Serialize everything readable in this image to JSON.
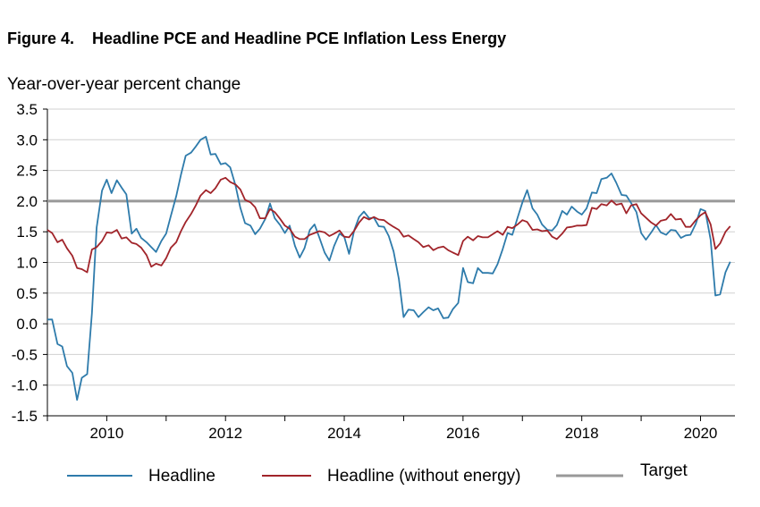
{
  "figure": {
    "title": "Figure 4.    Headline PCE and Headline PCE Inflation Less Energy"
  },
  "chart_data": {
    "type": "line",
    "title": "Headline PCE and Headline PCE Inflation Less Energy",
    "ylabel": "Year-over-year percent change",
    "xlabel": "",
    "ylim": [
      -1.5,
      3.5
    ],
    "xlim": [
      2009.0,
      2020.58
    ],
    "yticks": [
      "3.5",
      "3.0",
      "2.5",
      "2.0",
      "1.5",
      "1.0",
      "0.5",
      "0.0",
      "-0.5",
      "-1.0",
      "-1.5"
    ],
    "xticks": [
      "2010",
      "2012",
      "2014",
      "2016",
      "2018",
      "2020"
    ],
    "grid": "horizontal",
    "legend": "bottom",
    "series": [
      {
        "name": "Headline",
        "color": "#2e7bab",
        "points": [
          [
            2009.0,
            0.07
          ],
          [
            2009.08,
            0.07
          ],
          [
            2009.17,
            -0.33
          ],
          [
            2009.25,
            -0.37
          ],
          [
            2009.33,
            -0.69
          ],
          [
            2009.42,
            -0.8
          ],
          [
            2009.5,
            -1.24
          ],
          [
            2009.58,
            -0.88
          ],
          [
            2009.67,
            -0.82
          ],
          [
            2009.75,
            0.17
          ],
          [
            2009.83,
            1.57
          ],
          [
            2009.92,
            2.17
          ],
          [
            2010.0,
            2.35
          ],
          [
            2010.08,
            2.13
          ],
          [
            2010.17,
            2.34
          ],
          [
            2010.25,
            2.22
          ],
          [
            2010.33,
            2.11
          ],
          [
            2010.42,
            1.47
          ],
          [
            2010.5,
            1.55
          ],
          [
            2010.58,
            1.4
          ],
          [
            2010.67,
            1.33
          ],
          [
            2010.75,
            1.25
          ],
          [
            2010.83,
            1.17
          ],
          [
            2010.92,
            1.35
          ],
          [
            2011.0,
            1.47
          ],
          [
            2011.08,
            1.76
          ],
          [
            2011.17,
            2.08
          ],
          [
            2011.25,
            2.43
          ],
          [
            2011.33,
            2.74
          ],
          [
            2011.42,
            2.79
          ],
          [
            2011.5,
            2.89
          ],
          [
            2011.58,
            3.0
          ],
          [
            2011.67,
            3.05
          ],
          [
            2011.75,
            2.76
          ],
          [
            2011.83,
            2.77
          ],
          [
            2011.92,
            2.6
          ],
          [
            2012.0,
            2.62
          ],
          [
            2012.08,
            2.55
          ],
          [
            2012.17,
            2.25
          ],
          [
            2012.25,
            1.89
          ],
          [
            2012.33,
            1.64
          ],
          [
            2012.42,
            1.6
          ],
          [
            2012.5,
            1.46
          ],
          [
            2012.58,
            1.55
          ],
          [
            2012.67,
            1.71
          ],
          [
            2012.75,
            1.96
          ],
          [
            2012.83,
            1.72
          ],
          [
            2012.92,
            1.61
          ],
          [
            2013.0,
            1.48
          ],
          [
            2013.08,
            1.6
          ],
          [
            2013.17,
            1.27
          ],
          [
            2013.25,
            1.08
          ],
          [
            2013.33,
            1.23
          ],
          [
            2013.42,
            1.53
          ],
          [
            2013.5,
            1.62
          ],
          [
            2013.58,
            1.41
          ],
          [
            2013.67,
            1.16
          ],
          [
            2013.75,
            1.03
          ],
          [
            2013.83,
            1.27
          ],
          [
            2013.92,
            1.47
          ],
          [
            2014.0,
            1.42
          ],
          [
            2014.08,
            1.14
          ],
          [
            2014.17,
            1.53
          ],
          [
            2014.25,
            1.74
          ],
          [
            2014.33,
            1.83
          ],
          [
            2014.42,
            1.72
          ],
          [
            2014.5,
            1.73
          ],
          [
            2014.58,
            1.59
          ],
          [
            2014.67,
            1.58
          ],
          [
            2014.75,
            1.43
          ],
          [
            2014.83,
            1.18
          ],
          [
            2014.92,
            0.73
          ],
          [
            2015.0,
            0.11
          ],
          [
            2015.08,
            0.23
          ],
          [
            2015.17,
            0.22
          ],
          [
            2015.25,
            0.11
          ],
          [
            2015.33,
            0.19
          ],
          [
            2015.42,
            0.27
          ],
          [
            2015.5,
            0.22
          ],
          [
            2015.58,
            0.25
          ],
          [
            2015.67,
            0.09
          ],
          [
            2015.75,
            0.1
          ],
          [
            2015.83,
            0.24
          ],
          [
            2015.92,
            0.34
          ],
          [
            2016.0,
            0.91
          ],
          [
            2016.08,
            0.68
          ],
          [
            2016.17,
            0.66
          ],
          [
            2016.25,
            0.91
          ],
          [
            2016.33,
            0.83
          ],
          [
            2016.42,
            0.83
          ],
          [
            2016.5,
            0.82
          ],
          [
            2016.58,
            0.97
          ],
          [
            2016.67,
            1.22
          ],
          [
            2016.75,
            1.48
          ],
          [
            2016.83,
            1.45
          ],
          [
            2016.92,
            1.73
          ],
          [
            2017.0,
            1.98
          ],
          [
            2017.08,
            2.18
          ],
          [
            2017.17,
            1.88
          ],
          [
            2017.25,
            1.78
          ],
          [
            2017.33,
            1.62
          ],
          [
            2017.42,
            1.53
          ],
          [
            2017.5,
            1.52
          ],
          [
            2017.58,
            1.61
          ],
          [
            2017.67,
            1.84
          ],
          [
            2017.75,
            1.78
          ],
          [
            2017.83,
            1.91
          ],
          [
            2017.92,
            1.83
          ],
          [
            2018.0,
            1.78
          ],
          [
            2018.08,
            1.88
          ],
          [
            2018.17,
            2.14
          ],
          [
            2018.25,
            2.13
          ],
          [
            2018.33,
            2.36
          ],
          [
            2018.42,
            2.38
          ],
          [
            2018.5,
            2.45
          ],
          [
            2018.58,
            2.3
          ],
          [
            2018.67,
            2.1
          ],
          [
            2018.75,
            2.09
          ],
          [
            2018.83,
            1.97
          ],
          [
            2018.92,
            1.82
          ],
          [
            2019.0,
            1.48
          ],
          [
            2019.08,
            1.37
          ],
          [
            2019.17,
            1.49
          ],
          [
            2019.25,
            1.61
          ],
          [
            2019.33,
            1.49
          ],
          [
            2019.42,
            1.45
          ],
          [
            2019.5,
            1.53
          ],
          [
            2019.58,
            1.52
          ],
          [
            2019.67,
            1.4
          ],
          [
            2019.75,
            1.44
          ],
          [
            2019.83,
            1.45
          ],
          [
            2019.92,
            1.63
          ],
          [
            2020.0,
            1.87
          ],
          [
            2020.08,
            1.84
          ],
          [
            2020.17,
            1.37
          ],
          [
            2020.25,
            0.46
          ],
          [
            2020.33,
            0.48
          ],
          [
            2020.42,
            0.84
          ],
          [
            2020.5,
            1.01
          ]
        ]
      },
      {
        "name": "Headline (without energy)",
        "color": "#a1242a",
        "points": [
          [
            2009.0,
            1.53
          ],
          [
            2009.08,
            1.48
          ],
          [
            2009.17,
            1.33
          ],
          [
            2009.25,
            1.37
          ],
          [
            2009.33,
            1.23
          ],
          [
            2009.42,
            1.11
          ],
          [
            2009.5,
            0.91
          ],
          [
            2009.58,
            0.89
          ],
          [
            2009.67,
            0.84
          ],
          [
            2009.75,
            1.21
          ],
          [
            2009.83,
            1.25
          ],
          [
            2009.92,
            1.35
          ],
          [
            2010.0,
            1.49
          ],
          [
            2010.08,
            1.48
          ],
          [
            2010.17,
            1.53
          ],
          [
            2010.25,
            1.39
          ],
          [
            2010.33,
            1.41
          ],
          [
            2010.42,
            1.32
          ],
          [
            2010.5,
            1.3
          ],
          [
            2010.58,
            1.24
          ],
          [
            2010.67,
            1.12
          ],
          [
            2010.75,
            0.93
          ],
          [
            2010.83,
            0.98
          ],
          [
            2010.92,
            0.95
          ],
          [
            2011.0,
            1.07
          ],
          [
            2011.08,
            1.24
          ],
          [
            2011.17,
            1.33
          ],
          [
            2011.25,
            1.51
          ],
          [
            2011.33,
            1.66
          ],
          [
            2011.42,
            1.79
          ],
          [
            2011.5,
            1.93
          ],
          [
            2011.58,
            2.09
          ],
          [
            2011.67,
            2.18
          ],
          [
            2011.75,
            2.13
          ],
          [
            2011.83,
            2.21
          ],
          [
            2011.92,
            2.35
          ],
          [
            2012.0,
            2.38
          ],
          [
            2012.08,
            2.31
          ],
          [
            2012.17,
            2.27
          ],
          [
            2012.25,
            2.19
          ],
          [
            2012.33,
            2.02
          ],
          [
            2012.42,
            1.98
          ],
          [
            2012.5,
            1.9
          ],
          [
            2012.58,
            1.72
          ],
          [
            2012.67,
            1.72
          ],
          [
            2012.75,
            1.87
          ],
          [
            2012.83,
            1.82
          ],
          [
            2012.92,
            1.71
          ],
          [
            2013.0,
            1.6
          ],
          [
            2013.08,
            1.55
          ],
          [
            2013.17,
            1.42
          ],
          [
            2013.25,
            1.38
          ],
          [
            2013.33,
            1.38
          ],
          [
            2013.42,
            1.45
          ],
          [
            2013.5,
            1.48
          ],
          [
            2013.58,
            1.51
          ],
          [
            2013.67,
            1.49
          ],
          [
            2013.75,
            1.43
          ],
          [
            2013.83,
            1.47
          ],
          [
            2013.92,
            1.52
          ],
          [
            2014.0,
            1.42
          ],
          [
            2014.08,
            1.41
          ],
          [
            2014.17,
            1.52
          ],
          [
            2014.25,
            1.65
          ],
          [
            2014.33,
            1.74
          ],
          [
            2014.42,
            1.7
          ],
          [
            2014.5,
            1.74
          ],
          [
            2014.58,
            1.7
          ],
          [
            2014.67,
            1.69
          ],
          [
            2014.75,
            1.63
          ],
          [
            2014.83,
            1.58
          ],
          [
            2014.92,
            1.53
          ],
          [
            2015.0,
            1.42
          ],
          [
            2015.08,
            1.44
          ],
          [
            2015.17,
            1.38
          ],
          [
            2015.25,
            1.33
          ],
          [
            2015.33,
            1.25
          ],
          [
            2015.42,
            1.28
          ],
          [
            2015.5,
            1.2
          ],
          [
            2015.58,
            1.24
          ],
          [
            2015.67,
            1.26
          ],
          [
            2015.75,
            1.2
          ],
          [
            2015.83,
            1.16
          ],
          [
            2015.92,
            1.12
          ],
          [
            2016.0,
            1.35
          ],
          [
            2016.08,
            1.42
          ],
          [
            2016.17,
            1.36
          ],
          [
            2016.25,
            1.43
          ],
          [
            2016.33,
            1.41
          ],
          [
            2016.42,
            1.41
          ],
          [
            2016.5,
            1.46
          ],
          [
            2016.58,
            1.51
          ],
          [
            2016.67,
            1.45
          ],
          [
            2016.75,
            1.58
          ],
          [
            2016.83,
            1.56
          ],
          [
            2016.92,
            1.62
          ],
          [
            2017.0,
            1.69
          ],
          [
            2017.08,
            1.66
          ],
          [
            2017.17,
            1.53
          ],
          [
            2017.25,
            1.54
          ],
          [
            2017.33,
            1.51
          ],
          [
            2017.42,
            1.52
          ],
          [
            2017.5,
            1.42
          ],
          [
            2017.58,
            1.38
          ],
          [
            2017.67,
            1.47
          ],
          [
            2017.75,
            1.57
          ],
          [
            2017.83,
            1.58
          ],
          [
            2017.92,
            1.6
          ],
          [
            2018.0,
            1.6
          ],
          [
            2018.08,
            1.61
          ],
          [
            2018.17,
            1.89
          ],
          [
            2018.25,
            1.87
          ],
          [
            2018.33,
            1.95
          ],
          [
            2018.42,
            1.93
          ],
          [
            2018.5,
            2.01
          ],
          [
            2018.58,
            1.94
          ],
          [
            2018.67,
            1.96
          ],
          [
            2018.75,
            1.8
          ],
          [
            2018.83,
            1.93
          ],
          [
            2018.92,
            1.95
          ],
          [
            2019.0,
            1.8
          ],
          [
            2019.08,
            1.73
          ],
          [
            2019.17,
            1.65
          ],
          [
            2019.25,
            1.6
          ],
          [
            2019.33,
            1.68
          ],
          [
            2019.42,
            1.7
          ],
          [
            2019.5,
            1.79
          ],
          [
            2019.58,
            1.7
          ],
          [
            2019.67,
            1.71
          ],
          [
            2019.75,
            1.58
          ],
          [
            2019.83,
            1.58
          ],
          [
            2019.92,
            1.69
          ],
          [
            2020.0,
            1.77
          ],
          [
            2020.08,
            1.82
          ],
          [
            2020.17,
            1.62
          ],
          [
            2020.25,
            1.22
          ],
          [
            2020.33,
            1.31
          ],
          [
            2020.42,
            1.5
          ],
          [
            2020.5,
            1.59
          ]
        ]
      },
      {
        "name": "Target",
        "color": "#999999",
        "constant": 2.0
      }
    ]
  }
}
